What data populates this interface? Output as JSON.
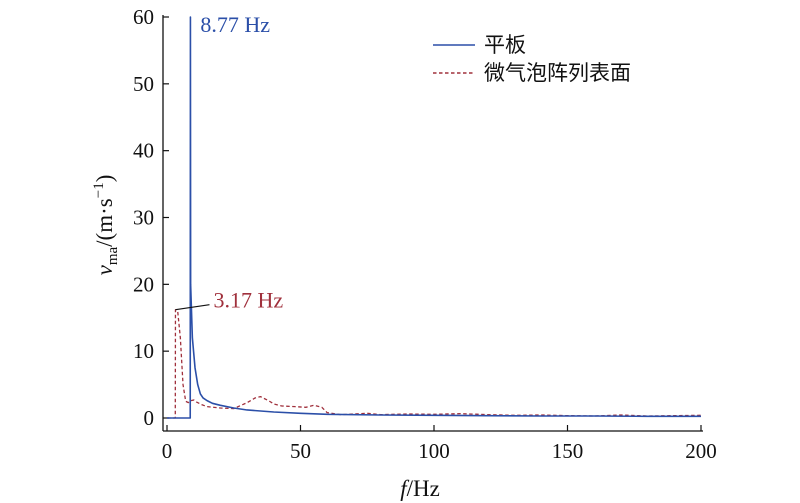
{
  "chart_data": {
    "type": "line",
    "title": "",
    "xlabel": {
      "italic": "f",
      "rest": "/Hz"
    },
    "ylabel": {
      "italic": "v",
      "sub": "ma",
      "rest": "/(m·s",
      "sup": "−1",
      "close": ")"
    },
    "xlim": [
      0,
      200
    ],
    "ylim": [
      0,
      60
    ],
    "xticks": [
      0,
      50,
      100,
      150,
      200
    ],
    "yticks": [
      0,
      10,
      20,
      30,
      40,
      50,
      60
    ],
    "legend_position": "top-right",
    "series": [
      {
        "name": "平板",
        "color": "#2b4fa8",
        "dash": "solid",
        "points": [
          [
            0,
            0
          ],
          [
            8.7,
            0
          ],
          [
            8.77,
            60
          ],
          [
            8.85,
            20
          ],
          [
            9.5,
            12
          ],
          [
            10.5,
            7.5
          ],
          [
            11.5,
            5
          ],
          [
            12.5,
            3.6
          ],
          [
            13.5,
            3
          ],
          [
            15,
            2.6
          ],
          [
            17,
            2.2
          ],
          [
            20,
            1.9
          ],
          [
            25,
            1.5
          ],
          [
            30,
            1.2
          ],
          [
            40,
            0.9
          ],
          [
            50,
            0.7
          ],
          [
            60,
            0.55
          ],
          [
            80,
            0.45
          ],
          [
            100,
            0.4
          ],
          [
            120,
            0.35
          ],
          [
            140,
            0.3
          ],
          [
            160,
            0.3
          ],
          [
            180,
            0.25
          ],
          [
            200,
            0.25
          ]
        ]
      },
      {
        "name": "微气泡阵列表面",
        "color": "#a0303c",
        "dash": "dashed",
        "points": [
          [
            0,
            0
          ],
          [
            3.1,
            0
          ],
          [
            3.17,
            16.2
          ],
          [
            4,
            16
          ],
          [
            5,
            12
          ],
          [
            6,
            5
          ],
          [
            7,
            2.5
          ],
          [
            8,
            2.3
          ],
          [
            9,
            2.6
          ],
          [
            10,
            2.7
          ],
          [
            11,
            2.4
          ],
          [
            13,
            2
          ],
          [
            15,
            1.7
          ],
          [
            20,
            1.5
          ],
          [
            25,
            1.4
          ],
          [
            30,
            2.3
          ],
          [
            33,
            3
          ],
          [
            35,
            3.2
          ],
          [
            38,
            2.6
          ],
          [
            40,
            2.1
          ],
          [
            43,
            1.8
          ],
          [
            48,
            1.7
          ],
          [
            52,
            1.6
          ],
          [
            55,
            1.9
          ],
          [
            58,
            1.6
          ],
          [
            60,
            0.8
          ],
          [
            65,
            0.5
          ],
          [
            70,
            0.6
          ],
          [
            75,
            0.7
          ],
          [
            80,
            0.5
          ],
          [
            90,
            0.6
          ],
          [
            100,
            0.55
          ],
          [
            110,
            0.65
          ],
          [
            120,
            0.5
          ],
          [
            130,
            0.4
          ],
          [
            140,
            0.45
          ],
          [
            150,
            0.35
          ],
          [
            160,
            0.3
          ],
          [
            170,
            0.45
          ],
          [
            180,
            0.3
          ],
          [
            190,
            0.35
          ],
          [
            200,
            0.4
          ]
        ]
      }
    ],
    "annotations": [
      {
        "text": "8.77 Hz",
        "x": 8.77,
        "y": 60,
        "color": "#2b4fa8"
      },
      {
        "text": "3.17 Hz",
        "x": 3.17,
        "y": 16.2,
        "color": "#a0303c"
      }
    ]
  }
}
